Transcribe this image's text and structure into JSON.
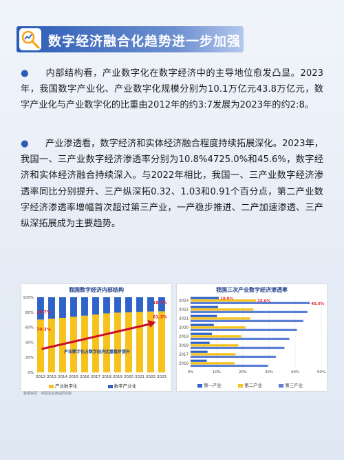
{
  "header": {
    "title": "数字经济融合化趋势进一步加强",
    "icon": "magnifier-chart-icon"
  },
  "paragraphs": [
    {
      "bullet": "●",
      "text": "内部结构看，产业数字化在数字经济中的主导地位愈发凸显。2023年，我国数字产业化、产业数字化规模分别为10.1万亿元43.8万亿元，数字产业化与产业数字化的比重由2012年的约3:7发展为2023年的约2:8。"
    },
    {
      "bullet": "●",
      "text": "产业渗透看，数字经济和实体经济融合程度持续拓展深化。2023年，我国一、三产业数字经济渗透率分别为10.8%4725.0%和45.6%，数字经济和实体经济融合持续深入。与2022年相比，我国一、三产业数字经济渗透率同比分别提升、三产纵深拓0.32、1.03和0.91个百分点，第二产业数字经济渗透率增幅首次超过第三产业，一产稳步推进、二产加速渗透、三产纵深拓展成为主要趋势。"
    }
  ],
  "colors": {
    "blue": "#2a5bb5",
    "yellow": "#f6c21b",
    "chart_blue": "#2e63c7",
    "arrow_red": "#c8102e",
    "label_red": "#e8202a"
  },
  "chart_data": [
    {
      "type": "bar",
      "stacked": true,
      "title": "我国数字经济内部结构",
      "categories": [
        "2012",
        "2013",
        "2014",
        "2015",
        "2016",
        "2017",
        "2018",
        "2019",
        "2020",
        "2021",
        "2022",
        "2023"
      ],
      "series": [
        {
          "name": "产业数字化",
          "values": [
            70.3,
            71.5,
            72.5,
            74.0,
            75.5,
            77.0,
            78.5,
            79.5,
            80.0,
            80.5,
            81.0,
            81.3
          ]
        },
        {
          "name": "数字产业化",
          "values": [
            29.7,
            28.5,
            27.5,
            26.0,
            24.5,
            23.0,
            21.5,
            20.5,
            20.0,
            19.5,
            19.0,
            18.7
          ]
        }
      ],
      "data_labels": {
        "top_left": "29.7%",
        "bottom_left": "70.3%",
        "top_right": "18.7%",
        "bottom_right": "81.3%"
      },
      "annotation": "产业数字化占数字经济比重稳步提升",
      "y_ticks": [
        "0%",
        "20%",
        "40%",
        "60%",
        "80%",
        "100%"
      ],
      "ylim": [
        0,
        100
      ],
      "legend_position": "bottom",
      "source": "数据来源：中国信息通信研究院"
    },
    {
      "type": "bar",
      "orientation": "horizontal",
      "title": "我国三次产业数字经济渗透率",
      "categories": [
        "2023",
        "2022",
        "2021",
        "2020",
        "2019",
        "2018",
        "2017",
        "2016"
      ],
      "series": [
        {
          "name": "第一产业",
          "values": [
            10.8,
            10.5,
            10.1,
            8.9,
            8.2,
            7.3,
            6.5,
            6.2
          ]
        },
        {
          "name": "第二产业",
          "values": [
            25.0,
            24.0,
            22.8,
            21.0,
            19.5,
            18.3,
            17.2,
            16.8
          ]
        },
        {
          "name": "第三产业",
          "values": [
            45.6,
            44.7,
            43.1,
            40.7,
            37.8,
            35.9,
            32.6,
            29.6
          ]
        }
      ],
      "data_labels": [
        "10.8%",
        "25.0%",
        "45.6%"
      ],
      "x_ticks": [
        "0%",
        "10%",
        "20%",
        "30%",
        "40%",
        "50%"
      ],
      "xlim": [
        0,
        50
      ],
      "legend_position": "bottom"
    }
  ]
}
